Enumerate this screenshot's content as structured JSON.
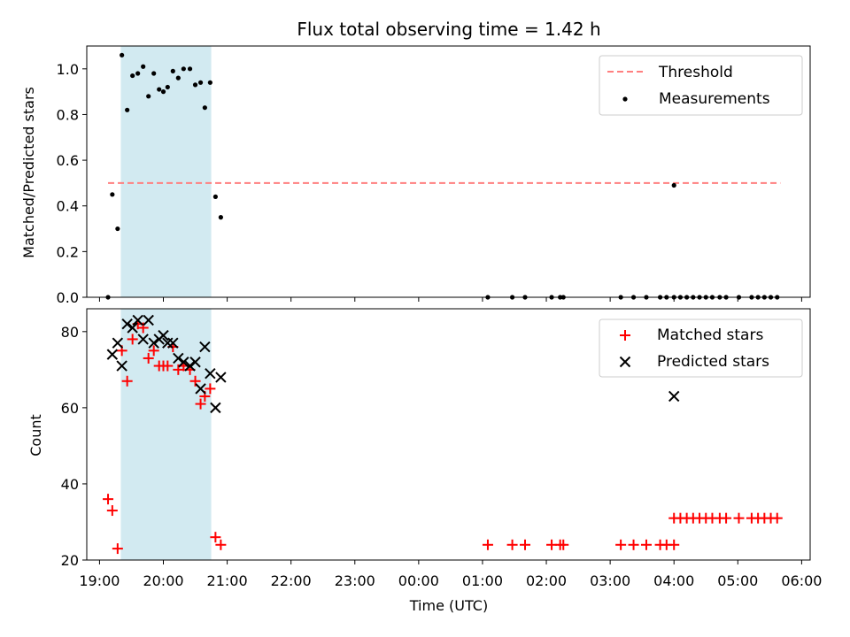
{
  "chart_data": [
    {
      "type": "scatter",
      "title": "Flux total observing time = 1.42 h",
      "xlabel": "",
      "ylabel": "Matched/Predicted stars",
      "xlim": [
        "18:48",
        "06:08"
      ],
      "ylim": [
        0,
        1.1
      ],
      "yticks": [
        "0.0",
        "0.2",
        "0.4",
        "0.6",
        "0.8",
        "1.0"
      ],
      "highlight_span": {
        "start": "19:20",
        "end": "20:45",
        "color": "#add8e6"
      },
      "legend_position": "top-right",
      "legend": [
        {
          "label": "Threshold",
          "marker": "dashed-line",
          "color": "#ff7f7f"
        },
        {
          "label": "Measurements",
          "marker": "dot",
          "color": "#000000"
        }
      ],
      "threshold": {
        "y": 0.5,
        "x_start": "19:08",
        "x_end": "05:40",
        "color": "#ff7f7f"
      },
      "series": [
        {
          "name": "Measurements",
          "color": "#000000",
          "points": [
            [
              "19:08",
              0.0
            ],
            [
              "19:12",
              0.45
            ],
            [
              "19:17",
              0.3
            ],
            [
              "19:21",
              1.06
            ],
            [
              "19:26",
              0.82
            ],
            [
              "19:31",
              0.97
            ],
            [
              "19:36",
              0.98
            ],
            [
              "19:41",
              1.01
            ],
            [
              "19:46",
              0.88
            ],
            [
              "19:51",
              0.98
            ],
            [
              "19:56",
              0.91
            ],
            [
              "20:00",
              0.9
            ],
            [
              "20:04",
              0.92
            ],
            [
              "20:09",
              0.99
            ],
            [
              "20:14",
              0.96
            ],
            [
              "20:19",
              1.0
            ],
            [
              "20:25",
              1.0
            ],
            [
              "20:30",
              0.93
            ],
            [
              "20:35",
              0.94
            ],
            [
              "20:39",
              0.83
            ],
            [
              "20:44",
              0.94
            ],
            [
              "20:49",
              0.44
            ],
            [
              "20:54",
              0.35
            ],
            [
              "01:05",
              0.0
            ],
            [
              "01:28",
              0.0
            ],
            [
              "01:40",
              0.0
            ],
            [
              "02:05",
              0.0
            ],
            [
              "02:13",
              0.0
            ],
            [
              "02:16",
              0.0
            ],
            [
              "03:10",
              0.0
            ],
            [
              "03:22",
              0.0
            ],
            [
              "03:34",
              0.0
            ],
            [
              "03:47",
              0.0
            ],
            [
              "03:53",
              0.0
            ],
            [
              "04:00",
              0.0
            ],
            [
              "04:00",
              0.49
            ],
            [
              "04:06",
              0.0
            ],
            [
              "04:12",
              0.0
            ],
            [
              "04:18",
              0.0
            ],
            [
              "04:24",
              0.0
            ],
            [
              "04:30",
              0.0
            ],
            [
              "04:36",
              0.0
            ],
            [
              "04:43",
              0.0
            ],
            [
              "04:49",
              0.0
            ],
            [
              "05:01",
              0.0
            ],
            [
              "05:13",
              0.0
            ],
            [
              "05:19",
              0.0
            ],
            [
              "05:25",
              0.0
            ],
            [
              "05:31",
              0.0
            ],
            [
              "05:37",
              0.0
            ]
          ]
        }
      ]
    },
    {
      "type": "scatter",
      "title": "",
      "xlabel": "Time (UTC)",
      "ylabel": "Count",
      "xlim": [
        "18:48",
        "06:08"
      ],
      "ylim": [
        20,
        86
      ],
      "yticks": [
        "20",
        "40",
        "60",
        "80"
      ],
      "xticks": [
        "19:00",
        "20:00",
        "21:00",
        "22:00",
        "23:00",
        "00:00",
        "01:00",
        "02:00",
        "03:00",
        "04:00",
        "05:00",
        "06:00"
      ],
      "highlight_span": {
        "start": "19:20",
        "end": "20:45",
        "color": "#add8e6"
      },
      "legend_position": "top-right",
      "legend": [
        {
          "label": "Matched stars",
          "marker": "plus",
          "color": "#ff0000"
        },
        {
          "label": "Predicted stars",
          "marker": "cross",
          "color": "#000000"
        }
      ],
      "series": [
        {
          "name": "Matched stars",
          "color": "#ff0000",
          "points": [
            [
              "19:08",
              36
            ],
            [
              "19:12",
              33
            ],
            [
              "19:17",
              23
            ],
            [
              "19:21",
              75
            ],
            [
              "19:26",
              67
            ],
            [
              "19:31",
              78
            ],
            [
              "19:36",
              82
            ],
            [
              "19:41",
              81
            ],
            [
              "19:46",
              73
            ],
            [
              "19:51",
              75
            ],
            [
              "19:56",
              71
            ],
            [
              "20:00",
              71
            ],
            [
              "20:04",
              71
            ],
            [
              "20:09",
              76
            ],
            [
              "20:14",
              70
            ],
            [
              "20:19",
              71
            ],
            [
              "20:25",
              70
            ],
            [
              "20:30",
              67
            ],
            [
              "20:35",
              61
            ],
            [
              "20:39",
              63
            ],
            [
              "20:44",
              65
            ],
            [
              "20:49",
              26
            ],
            [
              "20:54",
              24
            ],
            [
              "01:05",
              24
            ],
            [
              "01:28",
              24
            ],
            [
              "01:40",
              24
            ],
            [
              "02:05",
              24
            ],
            [
              "02:13",
              24
            ],
            [
              "02:16",
              24
            ],
            [
              "03:10",
              24
            ],
            [
              "03:22",
              24
            ],
            [
              "03:34",
              24
            ],
            [
              "03:47",
              24
            ],
            [
              "03:53",
              24
            ],
            [
              "04:00",
              24
            ],
            [
              "04:00",
              31
            ],
            [
              "04:06",
              31
            ],
            [
              "04:12",
              31
            ],
            [
              "04:18",
              31
            ],
            [
              "04:24",
              31
            ],
            [
              "04:30",
              31
            ],
            [
              "04:36",
              31
            ],
            [
              "04:43",
              31
            ],
            [
              "04:49",
              31
            ],
            [
              "05:01",
              31
            ],
            [
              "05:13",
              31
            ],
            [
              "05:19",
              31
            ],
            [
              "05:25",
              31
            ],
            [
              "05:31",
              31
            ],
            [
              "05:37",
              31
            ]
          ]
        },
        {
          "name": "Predicted stars",
          "color": "#000000",
          "points": [
            [
              "19:12",
              74
            ],
            [
              "19:17",
              77
            ],
            [
              "19:21",
              71
            ],
            [
              "19:26",
              82
            ],
            [
              "19:31",
              81
            ],
            [
              "19:36",
              83
            ],
            [
              "19:41",
              78
            ],
            [
              "19:46",
              83
            ],
            [
              "19:51",
              77
            ],
            [
              "19:56",
              78
            ],
            [
              "20:00",
              79
            ],
            [
              "20:04",
              77
            ],
            [
              "20:09",
              77
            ],
            [
              "20:14",
              73
            ],
            [
              "20:19",
              72
            ],
            [
              "20:25",
              71
            ],
            [
              "20:30",
              72
            ],
            [
              "20:35",
              65
            ],
            [
              "20:39",
              76
            ],
            [
              "20:44",
              69
            ],
            [
              "20:49",
              60
            ],
            [
              "20:54",
              68
            ],
            [
              "04:00",
              63
            ]
          ]
        }
      ]
    }
  ]
}
